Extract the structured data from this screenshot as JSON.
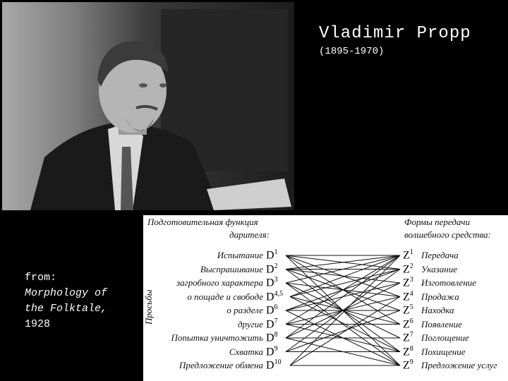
{
  "header": {
    "name": "Vladimir Propp",
    "years": "(1895-1970)"
  },
  "photo": {
    "alt": "portrait photograph"
  },
  "caption": {
    "from": "from:",
    "work_line1": "Morphology of",
    "work_line2": "the Folktale,",
    "year": "1928"
  },
  "diagram": {
    "left_header_line1": "Подготовительная функция",
    "left_header_line2": "дарителя:",
    "right_header_line1": "Формы передачи",
    "right_header_line2": "волшебного средства:",
    "side_label": "Просьбы",
    "left_items": [
      {
        "label": "Испытание",
        "code": "D",
        "sup": "1"
      },
      {
        "label": "Выспрашивание",
        "code": "D",
        "sup": "2"
      },
      {
        "label": "загробного характера",
        "code": "D",
        "sup": "3"
      },
      {
        "label": "о пощаде и свободе",
        "code": "D",
        "sup": "4,5"
      },
      {
        "label": "о разделе",
        "code": "D",
        "sup": "6"
      },
      {
        "label": "другие",
        "code": "D",
        "sup": "7"
      },
      {
        "label": "Попытка уничтожить",
        "code": "D",
        "sup": "8"
      },
      {
        "label": "Схватка",
        "code": "D",
        "sup": "9"
      },
      {
        "label": "Предложение обмена",
        "code": "D",
        "sup": "10"
      }
    ],
    "right_items": [
      {
        "label": "Передача",
        "code": "Z",
        "sup": "1"
      },
      {
        "label": "Указание",
        "code": "Z",
        "sup": "2"
      },
      {
        "label": "Изготовление",
        "code": "Z",
        "sup": "3"
      },
      {
        "label": "Продажа",
        "code": "Z",
        "sup": "4"
      },
      {
        "label": "Находка",
        "code": "Z",
        "sup": "5"
      },
      {
        "label": "Появление",
        "code": "Z",
        "sup": "6"
      },
      {
        "label": "Поглощение",
        "code": "Z",
        "sup": "7"
      },
      {
        "label": "Похищение",
        "code": "Z",
        "sup": "8"
      },
      {
        "label": "Предложение услуг",
        "code": "Z",
        "sup": "9"
      }
    ]
  }
}
